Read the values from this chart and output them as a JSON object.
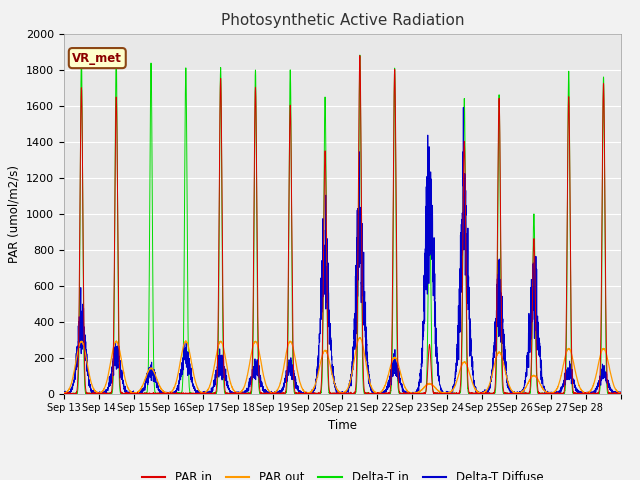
{
  "title": "Photosynthetic Active Radiation",
  "ylabel": "PAR (umol/m2/s)",
  "xlabel": "Time",
  "ylim": [
    0,
    2000
  ],
  "fig_facecolor": "#f2f2f2",
  "ax_facecolor": "#e8e8e8",
  "annotation_text": "VR_met",
  "annotation_facecolor": "#ffffcc",
  "annotation_edgecolor": "#8B4513",
  "annotation_textcolor": "#8B0000",
  "colors": {
    "PAR in": "#dd0000",
    "PAR out": "#ff9900",
    "Delta-T in": "#00dd00",
    "Delta-T Diffuse": "#0000cc"
  },
  "grid_color": "#ffffff",
  "n_days": 16,
  "ppd": 288,
  "xtick_labels": [
    "Sep 13",
    "Sep 14",
    "Sep 15",
    "Sep 16",
    "Sep 17",
    "Sep 18",
    "Sep 19",
    "Sep 20",
    "Sep 21",
    "Sep 22",
    "Sep 23",
    "Sep 24",
    "Sep 25",
    "Sep 26",
    "Sep 27",
    "Sep 28"
  ],
  "day_peaks": {
    "PAR_in": [
      1700,
      1650,
      0,
      0,
      1750,
      1700,
      1600,
      1350,
      1880,
      1800,
      270,
      1400,
      1640,
      860,
      1650,
      1720
    ],
    "PAR_out": [
      290,
      290,
      140,
      290,
      290,
      290,
      290,
      240,
      310,
      200,
      55,
      175,
      230,
      100,
      250,
      250
    ],
    "Delta_T_in": [
      1870,
      1870,
      1840,
      1810,
      1810,
      1800,
      1800,
      1650,
      1880,
      1810,
      1100,
      1640,
      1660,
      1000,
      1790,
      1760
    ],
    "Delta_T_dif": [
      380,
      220,
      130,
      220,
      180,
      150,
      150,
      720,
      880,
      160,
      1060,
      1010,
      500,
      580,
      120,
      110
    ]
  },
  "sigma_narrow": 0.035,
  "sigma_medium": 0.12,
  "sigma_wide": 0.16
}
